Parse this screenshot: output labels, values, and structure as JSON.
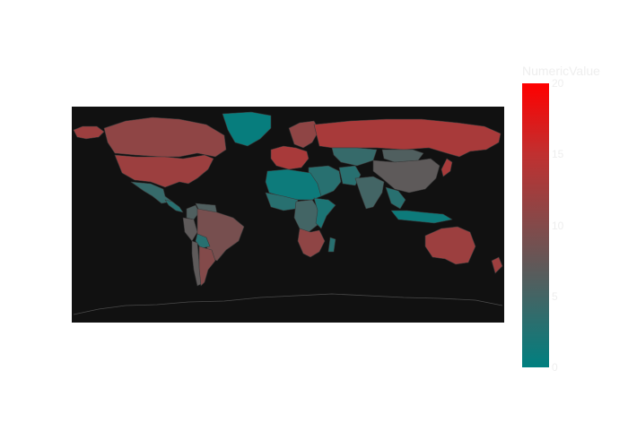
{
  "chart_data": {
    "type": "choropleth",
    "projection": "equirectangular",
    "background_color": "#111111",
    "land_border_color": "#3a3a3a",
    "colorscale": [
      [
        0.0,
        "#008080"
      ],
      [
        0.4,
        "#6b5454"
      ],
      [
        0.75,
        "#c03030"
      ],
      [
        1.0,
        "#ff0000"
      ]
    ],
    "colorbar": {
      "title": "NumericValue",
      "range": [
        0,
        20
      ],
      "tickvals": [
        0,
        5,
        10,
        15,
        20
      ],
      "ticktext": [
        "0",
        "5",
        "10",
        "15",
        "20"
      ]
    },
    "values": {
      "United States": 12,
      "Canada": 11,
      "Greenland": 0.5,
      "Alaska (USA)": 12,
      "Mexico": 4,
      "Central America": 3,
      "Colombia": 6,
      "Venezuela": 6,
      "Brazil": 9,
      "Peru": 7,
      "Bolivia": 3,
      "Argentina": 10,
      "Chile": 7,
      "Western Europe": 13,
      "Scandinavia": 11,
      "Russia": 13,
      "Kazakhstan": 4,
      "Middle East": 3,
      "Iran": 3,
      "North Africa": 1,
      "West Africa": 3,
      "Central Africa": 5,
      "East Africa": 2,
      "Southern Africa": 11,
      "South Asia": 5,
      "China": 7,
      "Mongolia": 6,
      "Southeast Asia": 3,
      "Indonesia": 1,
      "Japan": 13,
      "Australia": 12,
      "New Zealand": 12,
      "Madagascar": 3
    }
  }
}
